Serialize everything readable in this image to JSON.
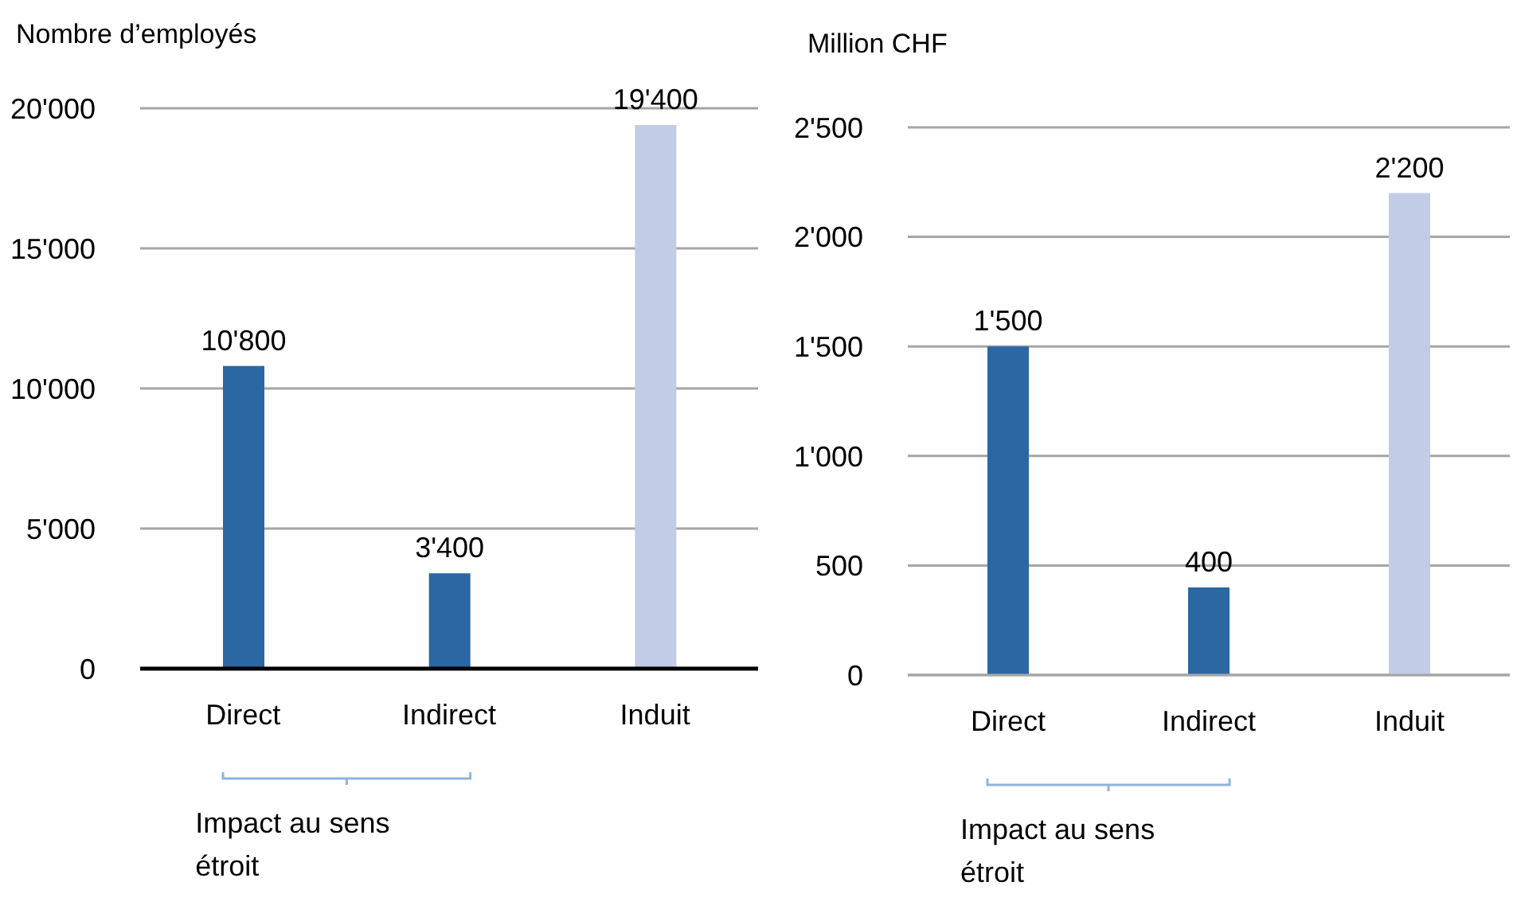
{
  "chart_data": [
    {
      "type": "bar",
      "ylabel": "Nombre d’employés",
      "categories": [
        "Direct",
        "Indirect",
        "Induit"
      ],
      "values": [
        10800,
        3400,
        19400
      ],
      "colors": [
        "#2b67a3",
        "#2b67a3",
        "#c2cce6"
      ],
      "value_labels": [
        "10'800",
        "3'400",
        "19'400"
      ],
      "ylim": [
        0,
        20000
      ],
      "yticks": [
        {
          "value": 0,
          "label": "0"
        },
        {
          "value": 5000,
          "label": "5'000"
        },
        {
          "value": 10000,
          "label": "10'000"
        },
        {
          "value": 15000,
          "label": "15'000"
        },
        {
          "value": 20000,
          "label": "20'000"
        }
      ],
      "grid": "y",
      "annotations": [
        "Impact au sens étroit"
      ]
    },
    {
      "type": "bar",
      "ylabel": "Million CHF",
      "categories": [
        "Direct",
        "Indirect",
        "Induit"
      ],
      "values": [
        1500,
        400,
        2200
      ],
      "colors": [
        "#2b67a3",
        "#2b67a3",
        "#c2cce6"
      ],
      "value_labels": [
        "1'500",
        "400",
        "2'200"
      ],
      "ylim": [
        0,
        2500
      ],
      "yticks": [
        {
          "value": 0,
          "label": "0"
        },
        {
          "value": 500,
          "label": "500"
        },
        {
          "value": 1000,
          "label": "1'000"
        },
        {
          "value": 1500,
          "label": "1'500"
        },
        {
          "value": 2000,
          "label": "2'000"
        },
        {
          "value": 2500,
          "label": "2'500"
        }
      ],
      "grid": "y",
      "annotations": [
        "Impact au sens étroit"
      ]
    }
  ]
}
